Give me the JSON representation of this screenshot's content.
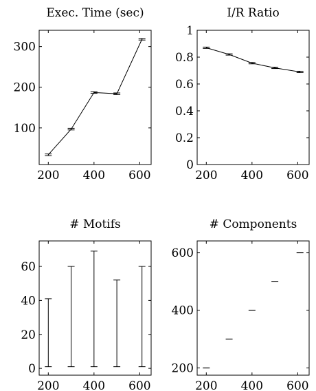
{
  "chart_data": [
    {
      "type": "line",
      "title": "Exec. Time (sec)",
      "xlabel": "",
      "ylabel": "",
      "x": [
        200,
        300,
        400,
        500,
        610
      ],
      "series": [
        {
          "values": [
            34,
            97,
            187,
            184,
            318
          ],
          "error": [
            2,
            2,
            2,
            2,
            2
          ]
        }
      ],
      "xticks": [
        200,
        400,
        600
      ],
      "yticks": [
        100,
        200,
        300
      ],
      "xlim": [
        160,
        650
      ],
      "ylim": [
        10,
        340
      ],
      "grid": false
    },
    {
      "type": "line",
      "title": "I/R Ratio",
      "xlabel": "",
      "ylabel": "",
      "x": [
        200,
        300,
        400,
        500,
        610
      ],
      "series": [
        {
          "values": [
            0.87,
            0.82,
            0.755,
            0.72,
            0.69
          ],
          "error": [
            0.005,
            0.005,
            0.005,
            0.005,
            0.005
          ]
        }
      ],
      "xticks": [
        200,
        400,
        600
      ],
      "yticks": [
        0,
        0.2,
        0.4,
        0.6,
        0.8,
        1
      ],
      "xlim": [
        160,
        650
      ],
      "ylim": [
        0,
        1
      ],
      "grid": false
    },
    {
      "type": "line",
      "title": "# Motifs",
      "xlabel": "",
      "ylabel": "",
      "x": [
        200,
        300,
        400,
        500,
        610
      ],
      "series": [
        {
          "values": [
            21,
            30.5,
            35,
            26.5,
            30.5
          ],
          "error": [
            20,
            29.5,
            34,
            25.5,
            29.5
          ],
          "line": false
        }
      ],
      "xticks": [
        200,
        400,
        600
      ],
      "yticks": [
        0,
        20,
        40,
        60
      ],
      "xlim": [
        160,
        650
      ],
      "ylim": [
        -4,
        75
      ],
      "grid": false
    },
    {
      "type": "scatter",
      "title": "# Components",
      "xlabel": "",
      "ylabel": "",
      "x": [
        200,
        300,
        400,
        500,
        610
      ],
      "series": [
        {
          "values": [
            200,
            300,
            400,
            500,
            600
          ],
          "error": [
            1,
            1,
            1,
            1,
            1
          ],
          "line": false
        }
      ],
      "xticks": [
        200,
        400,
        600
      ],
      "yticks": [
        200,
        400,
        600
      ],
      "xlim": [
        160,
        650
      ],
      "ylim": [
        175,
        640
      ],
      "grid": false
    }
  ]
}
